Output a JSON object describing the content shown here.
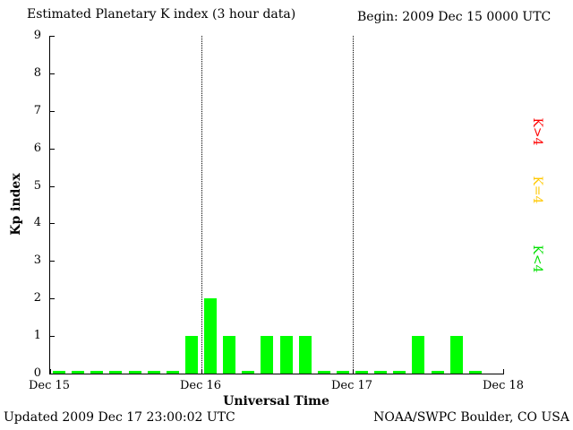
{
  "header": {
    "title": "Estimated Planetary K index (3 hour data)",
    "begin_label": "Begin: 2009 Dec 15 0000 UTC"
  },
  "footer": {
    "updated": "Updated 2009 Dec 17 23:00:02 UTC",
    "source": "NOAA/SWPC Boulder, CO USA"
  },
  "chart_data": {
    "type": "bar",
    "title": "Estimated Planetary K index (3 hour data)",
    "xlabel": "Universal Time",
    "ylabel": "Kp index",
    "ylim": [
      0,
      9
    ],
    "y_ticks": [
      0,
      1,
      2,
      3,
      4,
      5,
      6,
      7,
      8,
      9
    ],
    "x_tick_labels": [
      "Dec 15",
      "Dec 16",
      "Dec 17",
      "Dec 18"
    ],
    "slots_per_day": 8,
    "days": 3,
    "hours_per_slot": 3,
    "values": [
      0,
      0,
      0,
      0,
      0,
      0,
      0,
      1,
      2,
      1,
      0,
      1,
      1,
      1,
      0,
      0,
      0,
      0,
      0,
      1,
      0,
      1,
      0
    ],
    "bar_color": "#00ff00",
    "grid_on": true,
    "gridline_day_indices": [
      1,
      2
    ],
    "legend_position": "right",
    "legend": [
      {
        "label": "K>4",
        "color": "#ff0000"
      },
      {
        "label": "K=4",
        "color": "#ffc800"
      },
      {
        "label": "K<4",
        "color": "#00e000"
      }
    ]
  }
}
